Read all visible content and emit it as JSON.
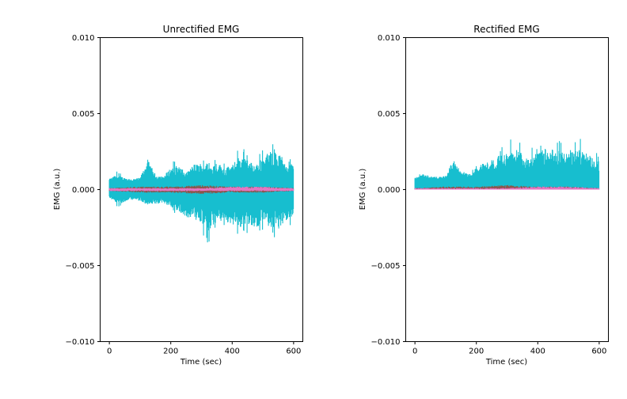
{
  "chart_data": [
    {
      "type": "line",
      "title": "Unrectified EMG",
      "xlabel": "Time (sec)",
      "ylabel": "EMG (a.u.)",
      "xlim": [
        -30,
        630
      ],
      "ylim": [
        -0.01,
        0.01
      ],
      "x_ticks": [
        0,
        200,
        400,
        600
      ],
      "x_tick_labels": [
        "0",
        "200",
        "400",
        "600"
      ],
      "y_ticks": [
        -0.01,
        -0.005,
        0.0,
        0.005,
        0.01
      ],
      "y_tick_labels": [
        "−0.010",
        "−0.005",
        "0.000",
        "0.005",
        "0.010"
      ],
      "grid": false,
      "rectified": false,
      "series": [
        {
          "color": "#17becf",
          "x": [
            0,
            25,
            50,
            75,
            100,
            125,
            150,
            175,
            200,
            225,
            250,
            275,
            300,
            325,
            350,
            375,
            400,
            425,
            450,
            475,
            500,
            525,
            550,
            575,
            600
          ],
          "upper": [
            0.0008,
            0.0012,
            0.0009,
            0.0008,
            0.0009,
            0.0025,
            0.0012,
            0.001,
            0.0018,
            0.002,
            0.0013,
            0.0021,
            0.0022,
            0.0019,
            0.0023,
            0.0018,
            0.002,
            0.0029,
            0.0025,
            0.002,
            0.0027,
            0.0033,
            0.0031,
            0.0024,
            0.0022
          ],
          "lower": [
            -0.0006,
            -0.0012,
            -0.001,
            -0.0008,
            -0.0009,
            -0.0013,
            -0.0012,
            -0.0011,
            -0.0014,
            -0.0019,
            -0.0023,
            -0.0025,
            -0.003,
            -0.0037,
            -0.0028,
            -0.0026,
            -0.003,
            -0.0033,
            -0.0029,
            -0.0034,
            -0.0028,
            -0.0033,
            -0.0034,
            -0.0026,
            -0.0023
          ]
        },
        {
          "color": "#8c564b",
          "x": [
            0,
            100,
            200,
            300,
            400,
            500,
            600
          ],
          "upper": [
            0.0001,
            0.0002,
            0.0002,
            0.0003,
            0.0002,
            0.0002,
            0.0001
          ],
          "lower": [
            -0.0001,
            -0.0002,
            -0.0002,
            -0.0003,
            -0.0002,
            -0.0002,
            -0.0001
          ]
        },
        {
          "color": "#e377c2",
          "x": [
            0,
            100,
            200,
            300,
            400,
            500,
            600
          ],
          "upper": [
            0.0001,
            0.0001,
            0.0001,
            0.0001,
            0.0002,
            0.0002,
            0.0001
          ],
          "lower": [
            -0.0001,
            -0.0001,
            -0.0001,
            -0.0001,
            -0.0001,
            -0.0001,
            -0.0001
          ]
        }
      ]
    },
    {
      "type": "line",
      "title": "Rectified EMG",
      "xlabel": "Time (sec)",
      "ylabel": "EMG (a.u.)",
      "xlim": [
        -30,
        630
      ],
      "ylim": [
        -0.01,
        0.01
      ],
      "x_ticks": [
        0,
        200,
        400,
        600
      ],
      "x_tick_labels": [
        "0",
        "200",
        "400",
        "600"
      ],
      "y_ticks": [
        -0.01,
        -0.005,
        0.0,
        0.005,
        0.01
      ],
      "y_tick_labels": [
        "−0.010",
        "−0.005",
        "0.000",
        "0.005",
        "0.010"
      ],
      "grid": false,
      "rectified": true,
      "series": [
        {
          "color": "#17becf",
          "x": [
            0,
            25,
            50,
            75,
            100,
            125,
            150,
            175,
            200,
            225,
            250,
            275,
            300,
            325,
            350,
            375,
            400,
            425,
            450,
            475,
            500,
            525,
            550,
            575,
            600
          ],
          "upper": [
            0.0008,
            0.0012,
            0.001,
            0.0009,
            0.001,
            0.0025,
            0.0013,
            0.0012,
            0.0019,
            0.0022,
            0.0024,
            0.0028,
            0.003,
            0.0037,
            0.003,
            0.0027,
            0.0031,
            0.0034,
            0.0029,
            0.0034,
            0.0029,
            0.0034,
            0.0034,
            0.0027,
            0.0023
          ],
          "lower": [
            0,
            0,
            0,
            0,
            0,
            0,
            0,
            0,
            0,
            0,
            0,
            0,
            0,
            0,
            0,
            0,
            0,
            0,
            0,
            0,
            0,
            0,
            0,
            0,
            0
          ]
        },
        {
          "color": "#8c564b",
          "x": [
            0,
            100,
            200,
            300,
            400,
            500,
            600
          ],
          "upper": [
            0.0001,
            0.0002,
            0.0002,
            0.0003,
            0.0002,
            0.0002,
            0.0001
          ],
          "lower": [
            0,
            0,
            0,
            0,
            0,
            0,
            0
          ]
        },
        {
          "color": "#e377c2",
          "x": [
            0,
            100,
            200,
            300,
            400,
            500,
            600
          ],
          "upper": [
            0.0001,
            0.0001,
            0.0001,
            0.0001,
            0.0002,
            0.0002,
            0.0001
          ],
          "lower": [
            0,
            0,
            0,
            0,
            0,
            0,
            0
          ]
        }
      ]
    }
  ]
}
